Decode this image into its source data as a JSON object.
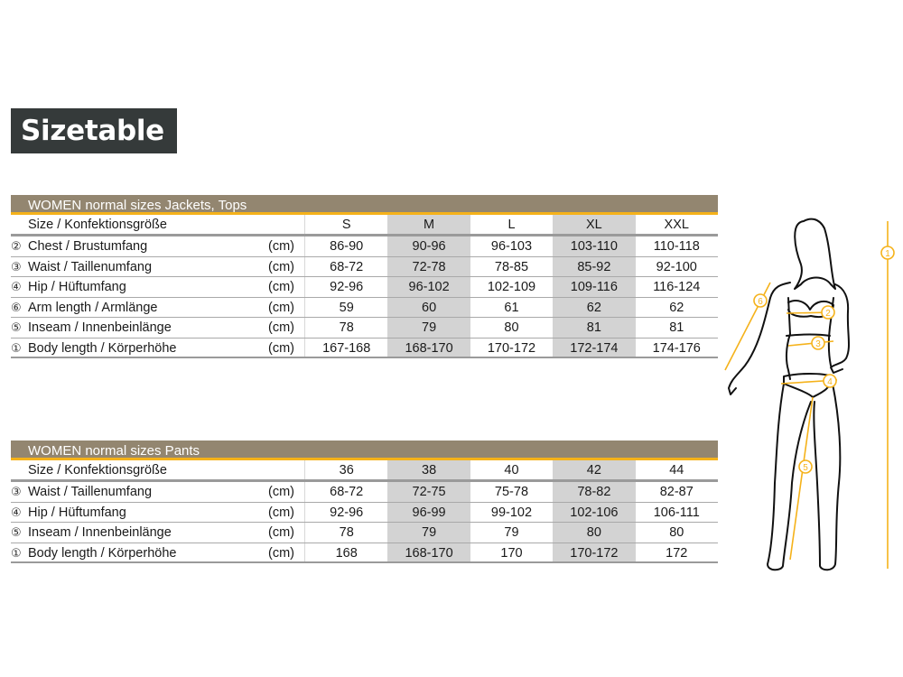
{
  "title": "Sizetable",
  "colors": {
    "title_bg": "#353a3a",
    "table_header_bg": "#938670",
    "accent_orange": "#f5b21a",
    "shaded_column": "#d3d3d3"
  },
  "tables": [
    {
      "heading": "WOMEN normal sizes Jackets, Tops",
      "size_label": "Size / Konfektionsgröße",
      "sizes": [
        "S",
        "M",
        "L",
        "XL",
        "XXL"
      ],
      "rows": [
        {
          "num": "②",
          "label": "Chest / Brustumfang",
          "unit": "(cm)",
          "values": [
            "86-90",
            "90-96",
            "96-103",
            "103-110",
            "110-118"
          ]
        },
        {
          "num": "③",
          "label": "Waist / Taillenumfang",
          "unit": "(cm)",
          "values": [
            "68-72",
            "72-78",
            "78-85",
            "85-92",
            "92-100"
          ]
        },
        {
          "num": "④",
          "label": "Hip / Hüftumfang",
          "unit": "(cm)",
          "values": [
            "92-96",
            "96-102",
            "102-109",
            "109-116",
            "116-124"
          ]
        },
        {
          "num": "⑥",
          "label": "Arm length / Armlänge",
          "unit": "(cm)",
          "values": [
            "59",
            "60",
            "61",
            "62",
            "62"
          ]
        },
        {
          "num": "⑤",
          "label": "Inseam / Innenbeinlänge",
          "unit": "(cm)",
          "values": [
            "78",
            "79",
            "80",
            "81",
            "81"
          ]
        },
        {
          "num": "①",
          "label": "Body length / Körperhöhe",
          "unit": "(cm)",
          "values": [
            "167-168",
            "168-170",
            "170-172",
            "172-174",
            "174-176"
          ]
        }
      ]
    },
    {
      "heading": "WOMEN normal sizes Pants",
      "size_label": "Size / Konfektionsgröße",
      "sizes": [
        "36",
        "38",
        "40",
        "42",
        "44"
      ],
      "rows": [
        {
          "num": "③",
          "label": "Waist / Taillenumfang",
          "unit": "(cm)",
          "values": [
            "68-72",
            "72-75",
            "75-78",
            "78-82",
            "82-87"
          ]
        },
        {
          "num": "④",
          "label": "Hip / Hüftumfang",
          "unit": "(cm)",
          "values": [
            "92-96",
            "96-99",
            "99-102",
            "102-106",
            "106-111"
          ]
        },
        {
          "num": "⑤",
          "label": "Inseam / Innenbeinlänge",
          "unit": "(cm)",
          "values": [
            "78",
            "79",
            "79",
            "80",
            "80"
          ]
        },
        {
          "num": "①",
          "label": "Body length / Körperhöhe",
          "unit": "(cm)",
          "values": [
            "168",
            "168-170",
            "170",
            "170-172",
            "172"
          ]
        }
      ]
    }
  ],
  "figure": {
    "markers": [
      "①",
      "②",
      "③",
      "④",
      "⑤",
      "⑥"
    ]
  }
}
